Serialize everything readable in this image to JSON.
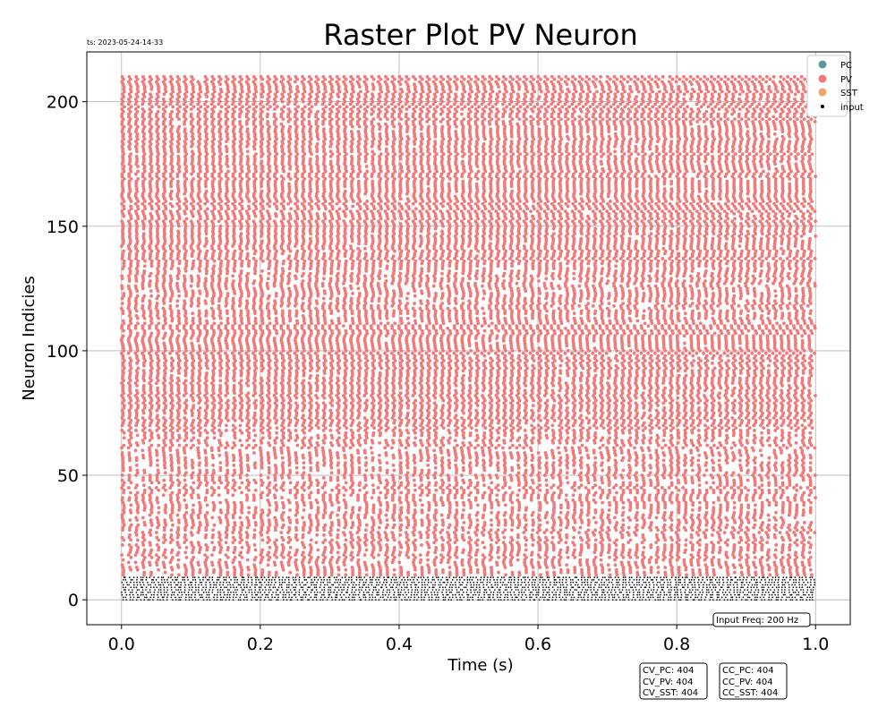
{
  "chart_data": {
    "type": "scatter",
    "title": "Raster Plot PV Neuron",
    "timestamp": "ts: 2023-05-24-14-33",
    "xlabel": "Time (s)",
    "ylabel": "Neuron Indicies",
    "xlim": [
      -0.05,
      1.05
    ],
    "ylim": [
      -10,
      220
    ],
    "xticks": [
      "0.0",
      "0.2",
      "0.4",
      "0.6",
      "0.8",
      "1.0"
    ],
    "yticks": [
      "0",
      "50",
      "100",
      "150",
      "200"
    ],
    "grid": true,
    "legend": {
      "placement": "top-right",
      "entries": [
        {
          "name": "PC",
          "color": "#5a9a9e"
        },
        {
          "name": "PV",
          "color": "#f07a7a"
        },
        {
          "name": "SST",
          "color": "#f4a460"
        },
        {
          "name": "input",
          "color": "#000000"
        }
      ]
    },
    "series": [
      {
        "name": "PV",
        "color": "#f07a7a",
        "neuron_range": [
          10,
          210
        ],
        "time_range": [
          0.0,
          1.0
        ],
        "approx_rate_hz": 100
      },
      {
        "name": "input",
        "color": "#000000",
        "neuron_range": [
          0,
          9
        ],
        "time_range": [
          0.0,
          1.0
        ],
        "rate_hz": 200
      }
    ],
    "annotations": {
      "input_freq": "Input Freq: 200 Hz",
      "cv_box": [
        "CV_PC: 404",
        "CV_PV: 404",
        "CV_SST: 404"
      ],
      "cc_box": [
        "CC_PC: 404",
        "CC_PV: 404",
        "CC_SST: 404"
      ]
    }
  }
}
